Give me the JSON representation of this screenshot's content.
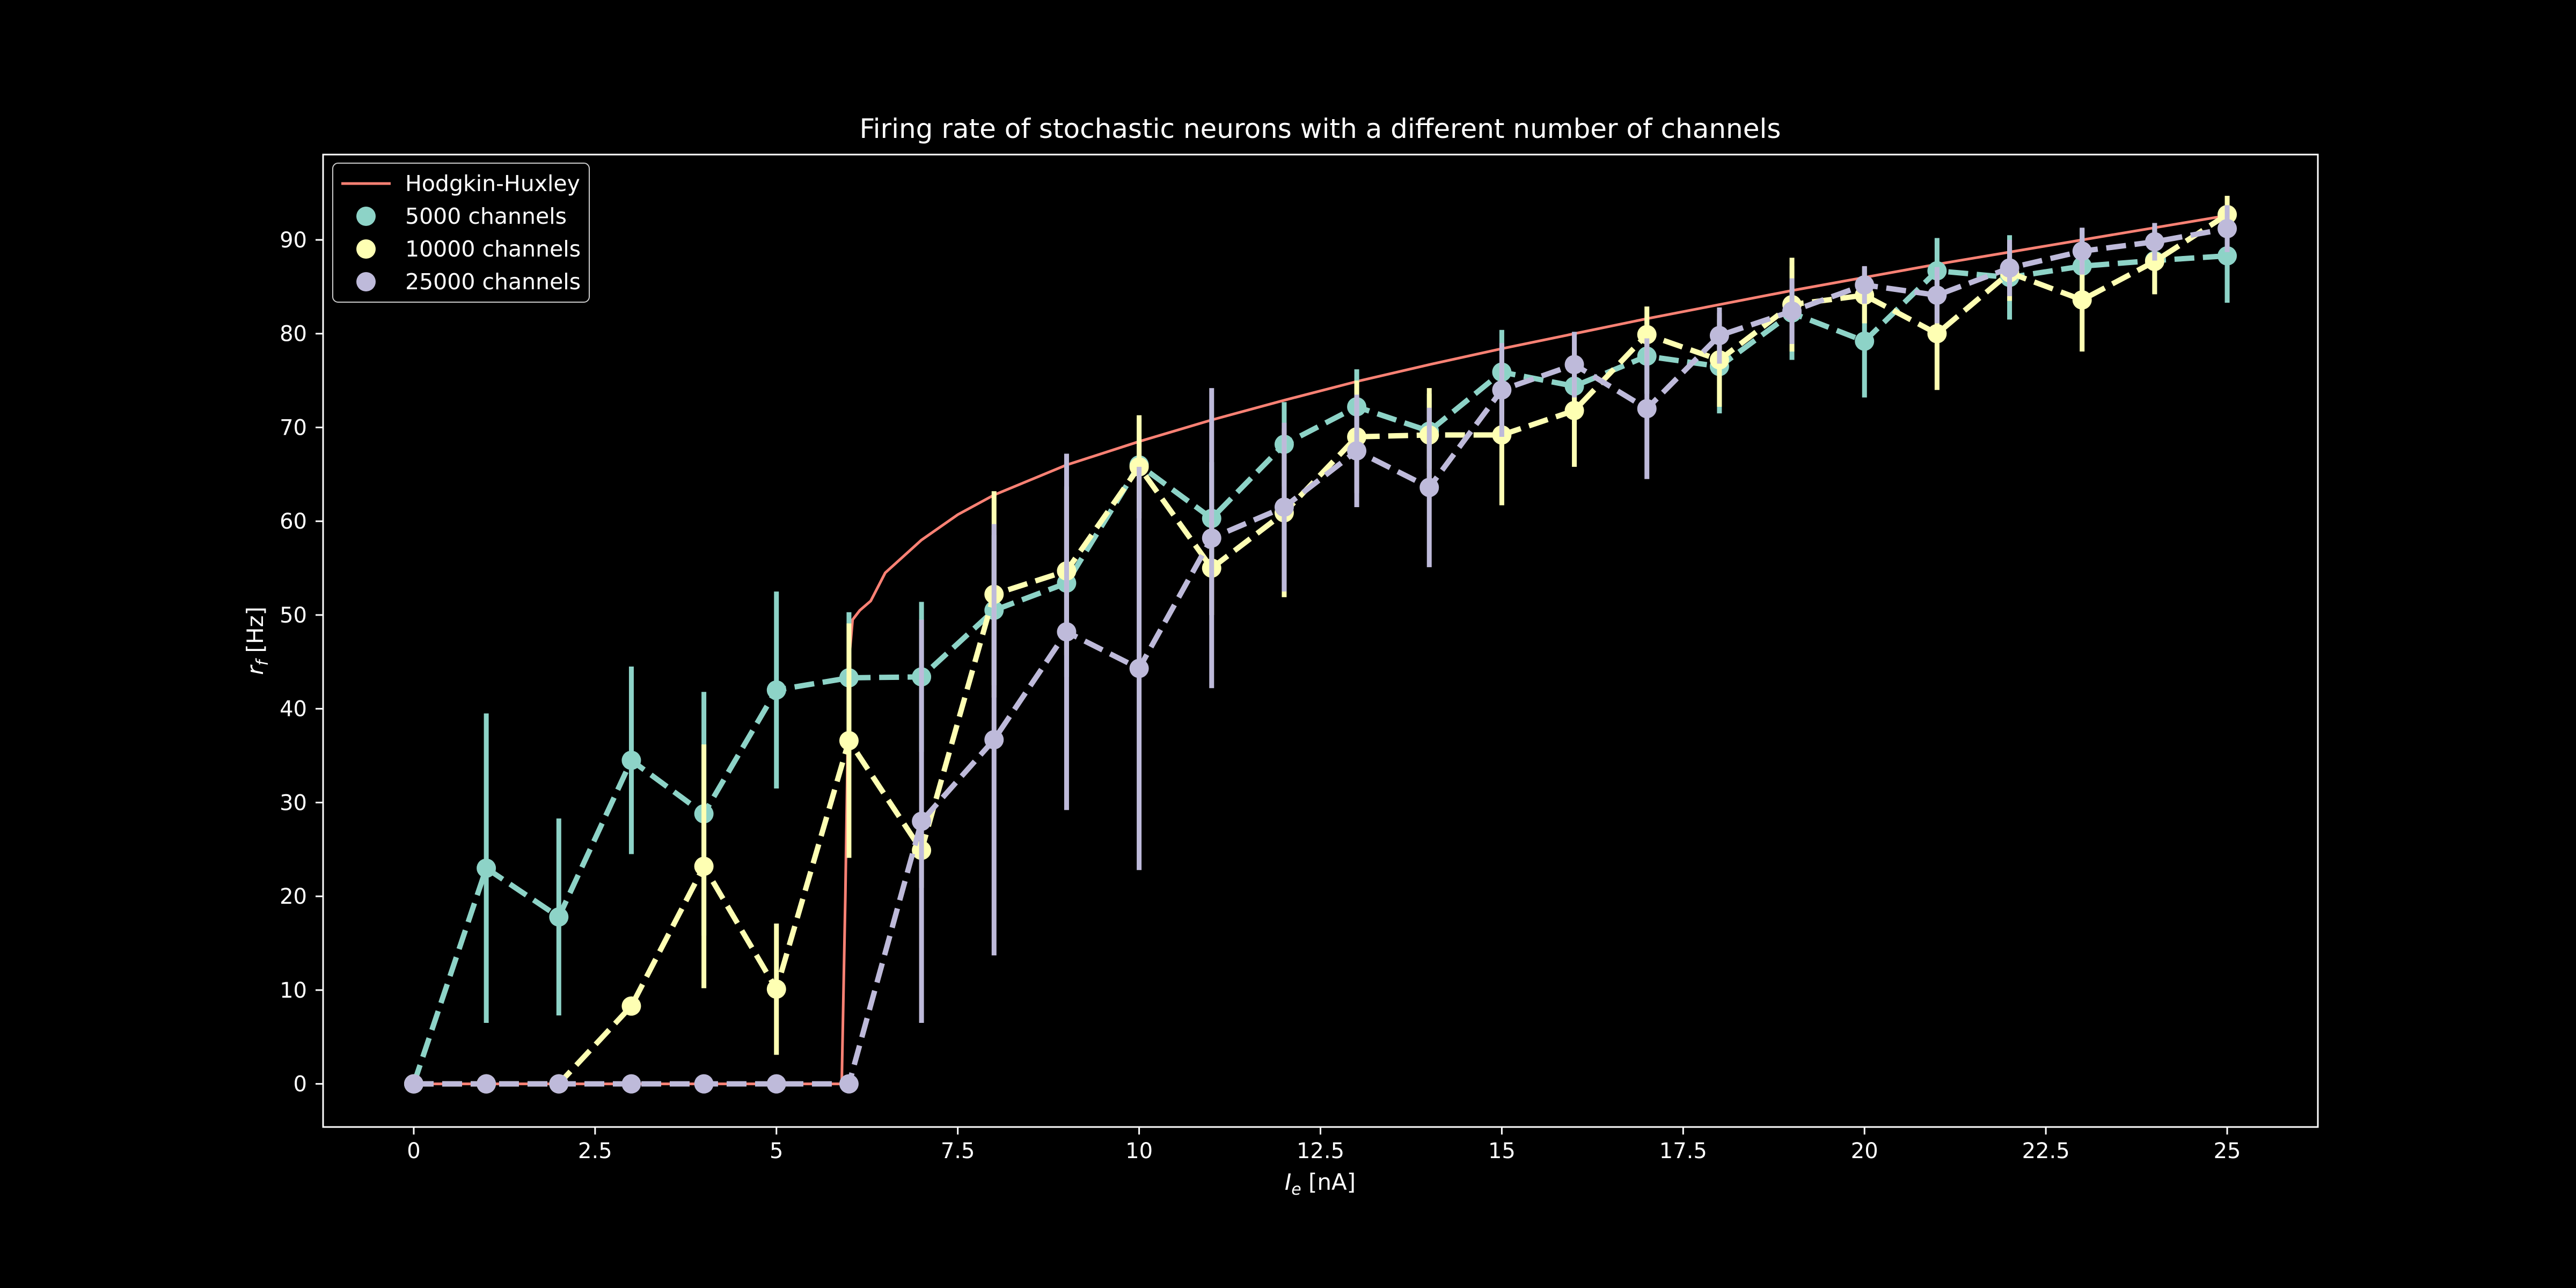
{
  "chart_data": {
    "type": "line",
    "title": "Firing rate of stochastic neurons with a different number of channels",
    "xlabel_main": "I",
    "xlabel_sub": "e",
    "xlabel_unit": " [nA]",
    "ylabel_main": "r",
    "ylabel_sub": "f",
    "ylabel_unit": " [Hz]",
    "xlim": [
      -1.25,
      26.25
    ],
    "ylim": [
      -4.6,
      99.1
    ],
    "xticks": [
      0,
      2.5,
      5,
      7.5,
      10,
      12.5,
      15,
      17.5,
      20,
      22.5,
      25
    ],
    "xtick_labels": [
      "0",
      "2.5",
      "5",
      "7.5",
      "10",
      "12.5",
      "15",
      "17.5",
      "20",
      "22.5",
      "25"
    ],
    "yticks": [
      0,
      10,
      20,
      30,
      40,
      50,
      60,
      70,
      80,
      90
    ],
    "ytick_labels": [
      "0",
      "10",
      "20",
      "30",
      "40",
      "50",
      "60",
      "70",
      "80",
      "90"
    ],
    "grid": false,
    "legend_position": "top-left",
    "background": "#000000",
    "axes_color": "#ffffff",
    "hh_curve": {
      "name": "Hodgkin-Huxley",
      "color": "#fa8174",
      "points": [
        [
          0,
          0
        ],
        [
          1,
          0
        ],
        [
          2,
          0
        ],
        [
          3,
          0
        ],
        [
          4,
          0
        ],
        [
          5,
          0
        ],
        [
          5.9,
          0
        ],
        [
          5.95,
          20
        ],
        [
          6.0,
          45
        ],
        [
          6.05,
          49.5
        ],
        [
          6.15,
          50.5
        ],
        [
          6.3,
          51.5
        ],
        [
          6.5,
          54.5
        ],
        [
          7,
          58
        ],
        [
          7.5,
          60.7
        ],
        [
          8,
          62.8
        ],
        [
          9,
          66.0
        ],
        [
          10,
          68.5
        ],
        [
          11,
          70.8
        ],
        [
          12,
          72.9
        ],
        [
          13,
          74.9
        ],
        [
          14,
          76.7
        ],
        [
          15,
          78.4
        ],
        [
          16,
          80.0
        ],
        [
          17,
          81.6
        ],
        [
          18,
          83.1
        ],
        [
          19,
          84.6
        ],
        [
          20,
          86.0
        ],
        [
          21,
          87.4
        ],
        [
          22,
          88.7
        ],
        [
          23,
          90.0
        ],
        [
          24,
          91.3
        ],
        [
          25,
          92.6
        ]
      ]
    },
    "x": [
      0,
      1,
      2,
      3,
      4,
      5,
      6,
      7,
      8,
      9,
      10,
      11,
      12,
      13,
      14,
      15,
      16,
      17,
      18,
      19,
      20,
      21,
      22,
      23,
      24,
      25
    ],
    "series": [
      {
        "name": "5000 channels",
        "color": "#8dd3c7",
        "values": [
          0,
          23,
          17.8,
          34.5,
          28.8,
          42,
          43.3,
          43.4,
          50.5,
          53.4,
          66,
          60.3,
          68.2,
          72.2,
          69.6,
          75.9,
          74.4,
          77.6,
          76.5,
          82.2,
          79.2,
          86.7,
          86,
          87.2,
          87.8,
          88.3
        ],
        "err": [
          0,
          16.5,
          10.5,
          10,
          13,
          10.5,
          7,
          8,
          8,
          10,
          5,
          6,
          4.5,
          4,
          4,
          4.5,
          4,
          4,
          5,
          5,
          6,
          3.5,
          4.5,
          4,
          3.5,
          5
        ]
      },
      {
        "name": "10000 channels",
        "color": "#feffb3",
        "values": [
          0,
          0,
          0,
          8.3,
          23.2,
          10.1,
          36.6,
          24.9,
          52.2,
          54.7,
          65.8,
          55.0,
          60.9,
          69.0,
          69.2,
          69.2,
          71.8,
          79.9,
          77.2,
          83.1,
          84.1,
          80.0,
          86.5,
          83.6,
          87.7,
          92.7
        ],
        "err": [
          0,
          0,
          0,
          0,
          13,
          7,
          12.5,
          4,
          11,
          9,
          5.5,
          5,
          9,
          6,
          5,
          7.5,
          6,
          3,
          5,
          5,
          3,
          6,
          3,
          5.5,
          3.5,
          2
        ]
      },
      {
        "name": "25000 channels",
        "color": "#bebada",
        "values": [
          0,
          0,
          0,
          0,
          0,
          0,
          0,
          28,
          36.7,
          48.2,
          44.3,
          58.2,
          61.5,
          67.5,
          63.6,
          74.0,
          76.7,
          72.0,
          79.8,
          82.4,
          85.2,
          84.1,
          87.0,
          88.8,
          89.8,
          91.2
        ],
        "err": [
          0,
          0,
          0,
          0,
          0,
          0,
          0,
          21.5,
          23,
          19,
          21.5,
          16,
          9,
          6,
          8.5,
          5,
          3.5,
          7.5,
          3,
          3.5,
          2,
          3,
          3,
          2.5,
          2,
          2.5
        ]
      }
    ]
  }
}
